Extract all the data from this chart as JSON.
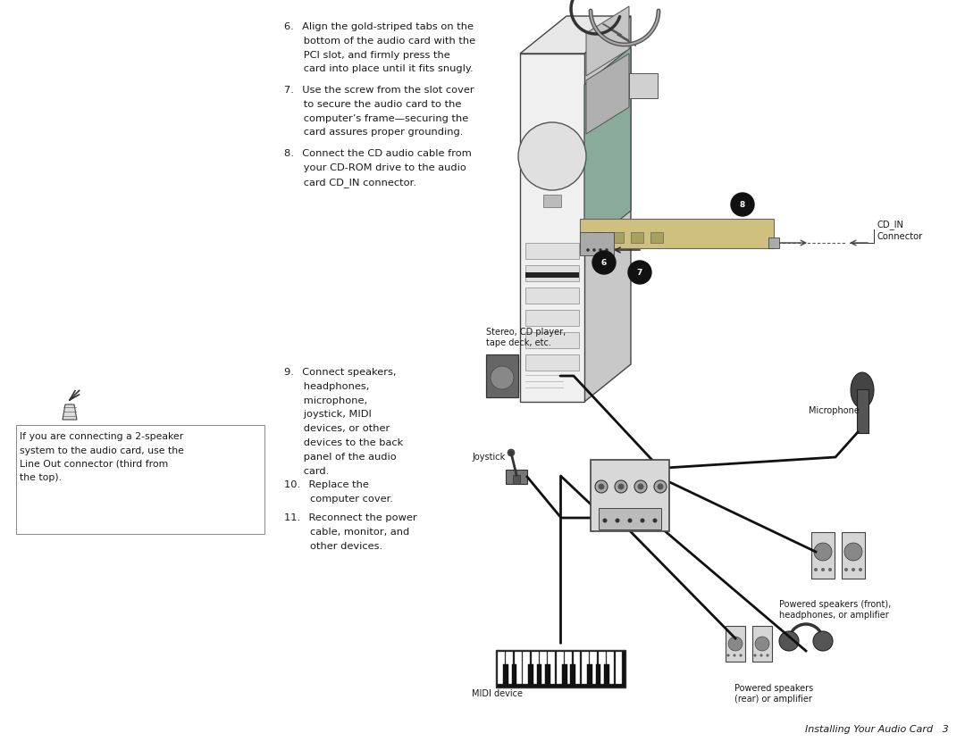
{
  "bg_color": "#ffffff",
  "page_width": 10.8,
  "page_height": 8.4,
  "dpi": 100,
  "text_color": "#1a1a1a",
  "footer_text": "Installing Your Audio Card   3",
  "step6_lines": [
    "6.  Align the gold-striped tabs on the",
    "      bottom of the audio card with the",
    "      PCI slot, and firmly press the",
    "      card into place until it fits snugly."
  ],
  "step7_lines": [
    "7.  Use the screw from the slot cover",
    "      to secure the audio card to the",
    "      computer’s frame—securing the",
    "      card assures proper grounding."
  ],
  "step8_lines": [
    "8.  Connect the CD audio cable from",
    "      your CD-ROM drive to the audio",
    "      card CD_IN connector."
  ],
  "step9_lines": [
    "9.  Connect speakers,",
    "      headphones,",
    "      microphone,",
    "      joystick, MIDI",
    "      devices, or other",
    "      devices to the back",
    "      panel of the audio",
    "      card."
  ],
  "step10_lines": [
    "10.  Replace the",
    "        computer cover."
  ],
  "step11_lines": [
    "11.  Reconnect the power",
    "        cable, monitor, and",
    "        other devices."
  ],
  "side_note_lines": [
    "If you are connecting a 2-speaker",
    "system to the audio card, use the",
    "Line Out connector (third from",
    "the top)."
  ],
  "label_stereo": "Stereo, CD player,\ntape deck, etc.",
  "label_joystick": "Joystick",
  "label_microphone": "Microphone",
  "label_midi": "MIDI device",
  "label_powered_front": "Powered speakers (front),\nheadphones, or amplifier",
  "label_powered_rear": "Powered speakers\n(rear) or amplifier",
  "label_cd_in_line1": "CD_IN",
  "label_cd_in_line2": "Connector"
}
